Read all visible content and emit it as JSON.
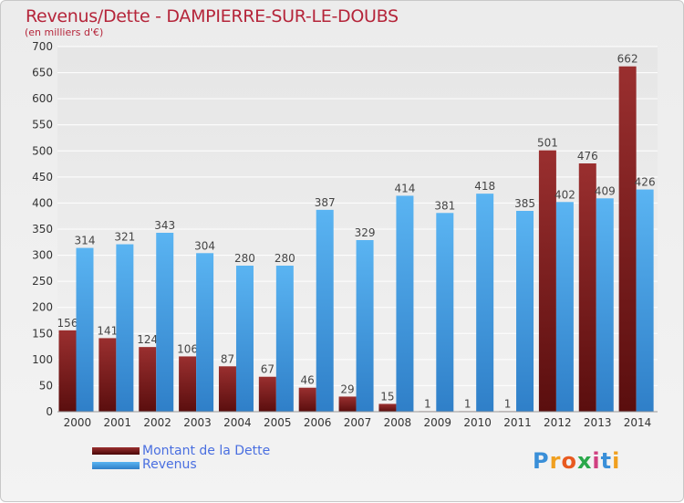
{
  "header": {
    "title": "Revenus/Dette - DAMPIERRE-SUR-LE-DOUBS",
    "subtitle": "(en milliers d'€)"
  },
  "legend": {
    "items": [
      {
        "label": "Montant de la Dette",
        "color": "#7a1f1f"
      },
      {
        "label": "Revenus",
        "color": "#4aa3e8"
      }
    ]
  },
  "logo": {
    "text": "Proxiti"
  },
  "chart_data": {
    "type": "bar",
    "categories": [
      "2000",
      "2001",
      "2002",
      "2003",
      "2004",
      "2005",
      "2006",
      "2007",
      "2008",
      "2009",
      "2010",
      "2011",
      "2012",
      "2013",
      "2014"
    ],
    "series": [
      {
        "name": "Montant de la Dette",
        "color": "#7a1f1f",
        "values": [
          156,
          141,
          124,
          106,
          87,
          67,
          46,
          29,
          15,
          1,
          1,
          1,
          501,
          476,
          662
        ],
        "labels": [
          "156",
          "141",
          "124",
          "106",
          "87",
          "67",
          "46",
          "29",
          "15",
          "1",
          "1",
          "1",
          "501",
          "476",
          "662"
        ]
      },
      {
        "name": "Revenus",
        "color": "#4aa3e8",
        "values": [
          314,
          321,
          343,
          304,
          280,
          280,
          387,
          329,
          414,
          381,
          418,
          385,
          402,
          409,
          426
        ],
        "labels": [
          "314",
          "321",
          "343",
          "304",
          "280",
          "280",
          "387",
          "329",
          "414",
          "381",
          "418",
          "385",
          "402",
          "409",
          "426"
        ]
      }
    ],
    "ylim": [
      0,
      700
    ],
    "yticks": [
      0,
      50,
      100,
      150,
      200,
      250,
      300,
      350,
      400,
      450,
      500,
      550,
      600,
      650,
      700
    ],
    "grid": true
  }
}
